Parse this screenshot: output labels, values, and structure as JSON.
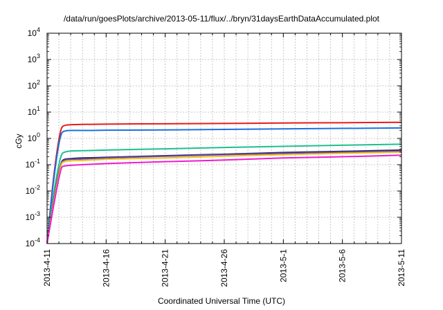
{
  "chart_data": {
    "type": "line",
    "title": "/data/run/goesPlots/archive/2013-05-11/flux/../bryn/31daysEarthDataAccumulated.plot",
    "xlabel": "Coordinated Universal Time (UTC)",
    "ylabel": "cGy",
    "y_scale": "log",
    "ylim": [
      0.0001,
      10000
    ],
    "xlim": [
      "2013-04-11",
      "2013-05-11"
    ],
    "grid": true,
    "legend": "none",
    "y_ticks": [
      {
        "base": "10",
        "exp": "-4"
      },
      {
        "base": "10",
        "exp": "-3"
      },
      {
        "base": "10",
        "exp": "-2"
      },
      {
        "base": "10",
        "exp": "-1"
      },
      {
        "base": "10",
        "exp": "0"
      },
      {
        "base": "10",
        "exp": "1"
      },
      {
        "base": "10",
        "exp": "2"
      },
      {
        "base": "10",
        "exp": "3"
      },
      {
        "base": "10",
        "exp": "4"
      }
    ],
    "x_ticks": [
      "2013-4-11",
      "2013-4-16",
      "2013-4-21",
      "2013-4-26",
      "2013-5-1",
      "2013-5-6",
      "2013-5-11"
    ],
    "series": [
      {
        "color": "#e8191c",
        "x": [
          "2013-04-11 00:00",
          "2013-04-11 12:00",
          "2013-04-12 00:00",
          "2013-04-12 06:00",
          "2013-04-12 12:00",
          "2013-04-13 00:00",
          "2013-04-14 00:00",
          "2013-04-16 00:00",
          "2013-04-21 00:00",
          "2013-04-26 00:00",
          "2013-05-01 00:00",
          "2013-05-06 00:00",
          "2013-05-11 00:00"
        ],
        "values": [
          0.0001,
          0.02,
          0.9,
          2.6,
          3.1,
          3.3,
          3.4,
          3.5,
          3.6,
          3.7,
          3.85,
          3.95,
          4.1
        ]
      },
      {
        "color": "#1a6fe0",
        "x": [
          "2013-04-11 00:00",
          "2013-04-11 12:00",
          "2013-04-12 00:00",
          "2013-04-12 06:00",
          "2013-04-12 12:00",
          "2013-04-13 00:00",
          "2013-04-14 00:00",
          "2013-04-16 00:00",
          "2013-04-21 00:00",
          "2013-04-26 00:00",
          "2013-05-01 00:00",
          "2013-05-06 00:00",
          "2013-05-11 00:00"
        ],
        "values": [
          0.0001,
          0.015,
          0.6,
          1.6,
          1.9,
          2.0,
          2.0,
          2.05,
          2.1,
          2.2,
          2.3,
          2.4,
          2.5
        ]
      },
      {
        "color": "#1dbf8e",
        "x": [
          "2013-04-11 00:00",
          "2013-04-11 12:00",
          "2013-04-12 00:00",
          "2013-04-12 06:00",
          "2013-04-12 12:00",
          "2013-04-13 00:00",
          "2013-04-14 00:00",
          "2013-04-16 00:00",
          "2013-04-21 00:00",
          "2013-04-26 00:00",
          "2013-05-01 00:00",
          "2013-05-06 00:00",
          "2013-05-11 00:00"
        ],
        "values": [
          0.0001,
          0.005,
          0.1,
          0.25,
          0.3,
          0.33,
          0.34,
          0.36,
          0.4,
          0.45,
          0.5,
          0.55,
          0.6
        ]
      },
      {
        "color": "#2a2466",
        "x": [
          "2013-04-11 00:00",
          "2013-04-11 12:00",
          "2013-04-12 00:00",
          "2013-04-12 06:00",
          "2013-04-12 12:00",
          "2013-04-13 00:00",
          "2013-04-14 00:00",
          "2013-04-16 00:00",
          "2013-04-21 00:00",
          "2013-04-26 00:00",
          "2013-05-01 00:00",
          "2013-05-06 00:00",
          "2013-05-11 00:00"
        ],
        "values": [
          0.0001,
          0.003,
          0.05,
          0.13,
          0.16,
          0.17,
          0.18,
          0.19,
          0.22,
          0.25,
          0.29,
          0.32,
          0.36
        ]
      },
      {
        "color": "#6a4a9c",
        "x": [
          "2013-04-11 00:00",
          "2013-04-11 12:00",
          "2013-04-12 00:00",
          "2013-04-12 06:00",
          "2013-04-12 12:00",
          "2013-04-13 00:00",
          "2013-04-14 00:00",
          "2013-04-16 00:00",
          "2013-04-21 00:00",
          "2013-04-26 00:00",
          "2013-05-01 00:00",
          "2013-05-06 00:00",
          "2013-05-11 00:00"
        ],
        "values": [
          0.0001,
          0.003,
          0.045,
          0.12,
          0.15,
          0.16,
          0.165,
          0.18,
          0.21,
          0.24,
          0.27,
          0.3,
          0.33
        ]
      },
      {
        "color": "#f2c418",
        "x": [
          "2013-04-11 00:00",
          "2013-04-11 12:00",
          "2013-04-12 00:00",
          "2013-04-12 06:00",
          "2013-04-12 12:00",
          "2013-04-13 00:00",
          "2013-04-14 00:00",
          "2013-04-16 00:00",
          "2013-04-21 00:00",
          "2013-04-26 00:00",
          "2013-05-01 00:00",
          "2013-05-06 00:00",
          "2013-05-11 00:00"
        ],
        "values": [
          0.0001,
          0.0025,
          0.04,
          0.11,
          0.13,
          0.14,
          0.145,
          0.16,
          0.18,
          0.21,
          0.24,
          0.27,
          0.3
        ]
      },
      {
        "color": "#f01ad0",
        "x": [
          "2013-04-11 00:00",
          "2013-04-11 12:00",
          "2013-04-12 00:00",
          "2013-04-12 06:00",
          "2013-04-12 12:00",
          "2013-04-13 00:00",
          "2013-04-14 00:00",
          "2013-04-16 00:00",
          "2013-04-21 00:00",
          "2013-04-26 00:00",
          "2013-05-01 00:00",
          "2013-05-06 00:00",
          "2013-05-11 00:00"
        ],
        "values": [
          0.0001,
          0.002,
          0.03,
          0.08,
          0.09,
          0.095,
          0.1,
          0.11,
          0.13,
          0.15,
          0.18,
          0.2,
          0.23
        ]
      }
    ]
  }
}
